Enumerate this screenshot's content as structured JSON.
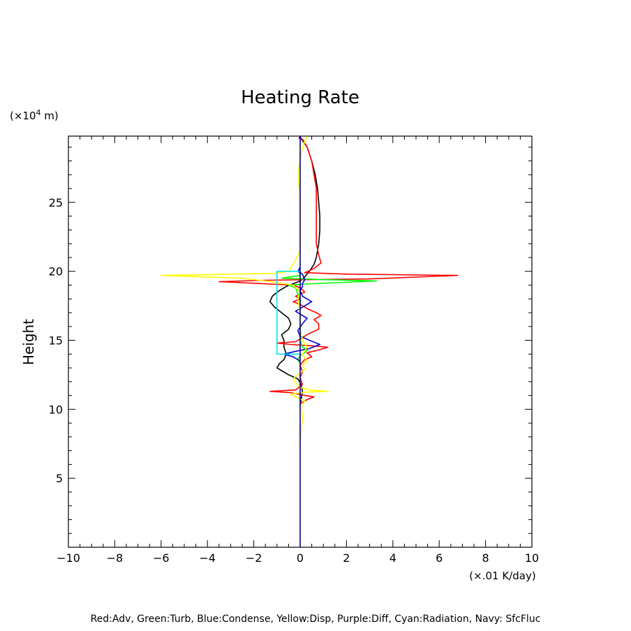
{
  "chart_data": {
    "type": "line",
    "title": "Heating Rate",
    "ylabel": "Height",
    "yunit_prefix": "(×10",
    "yunit_exp": "4",
    "yunit_suffix": " m)",
    "xunit": "(×.01 K/day)",
    "caption": "Red:Adv, Green:Turb, Blue:Condense, Yellow:Disp, Purple:Diff, Cyan:Radiation, Navy: SfcFluc",
    "xlim": [
      -10,
      10
    ],
    "ylim": [
      0,
      29.8
    ],
    "xticks": [
      -10,
      -8,
      -6,
      -4,
      -2,
      0,
      2,
      4,
      6,
      8,
      10
    ],
    "xtick_labels": [
      "−10",
      "−8",
      "−6",
      "−4",
      "−2",
      "0",
      "2",
      "4",
      "6",
      "8",
      "10"
    ],
    "yticks": [
      5,
      10,
      15,
      20,
      25
    ],
    "ytick_labels": [
      "5",
      "10",
      "15",
      "20",
      "25"
    ],
    "grid": false,
    "series": [
      {
        "color": "#000000",
        "points": [
          [
            0.0,
            10.3
          ],
          [
            0.05,
            10.8
          ],
          [
            0.1,
            11.3
          ],
          [
            0.05,
            11.8
          ],
          [
            -0.1,
            12.2
          ],
          [
            -0.5,
            12.5
          ],
          [
            -0.8,
            12.8
          ],
          [
            -1.0,
            13.0
          ],
          [
            -0.9,
            13.3
          ],
          [
            -0.7,
            13.6
          ],
          [
            -0.6,
            14.0
          ],
          [
            -0.7,
            14.5
          ],
          [
            -0.7,
            15.0
          ],
          [
            -0.8,
            15.4
          ],
          [
            -0.5,
            15.8
          ],
          [
            -0.4,
            16.2
          ],
          [
            -0.5,
            16.6
          ],
          [
            -0.8,
            17.0
          ],
          [
            -1.1,
            17.4
          ],
          [
            -1.3,
            17.8
          ],
          [
            -1.2,
            18.2
          ],
          [
            -0.9,
            18.6
          ],
          [
            -0.6,
            18.9
          ],
          [
            -0.3,
            19.1
          ],
          [
            0.0,
            19.3
          ],
          [
            0.2,
            19.6
          ],
          [
            0.4,
            20.0
          ],
          [
            0.6,
            20.5
          ],
          [
            0.7,
            21.0
          ],
          [
            0.8,
            22.0
          ],
          [
            0.85,
            23.0
          ],
          [
            0.85,
            24.0
          ],
          [
            0.8,
            25.0
          ],
          [
            0.75,
            26.0
          ],
          [
            0.65,
            27.0
          ],
          [
            0.5,
            28.0
          ],
          [
            0.3,
            29.0
          ],
          [
            0.1,
            29.5
          ],
          [
            0.0,
            29.7
          ]
        ]
      },
      {
        "color": "#ff0000",
        "points": [
          [
            0.0,
            10.4
          ],
          [
            0.3,
            10.7
          ],
          [
            0.6,
            10.9
          ],
          [
            0.2,
            11.0
          ],
          [
            -0.4,
            11.2
          ],
          [
            -1.3,
            11.3
          ],
          [
            -0.2,
            11.4
          ],
          [
            0.1,
            11.8
          ],
          [
            0.0,
            12.3
          ],
          [
            0.1,
            12.7
          ],
          [
            0.0,
            13.2
          ],
          [
            0.2,
            13.6
          ],
          [
            0.5,
            13.8
          ],
          [
            0.3,
            14.1
          ],
          [
            0.8,
            14.3
          ],
          [
            1.2,
            14.5
          ],
          [
            0.5,
            14.6
          ],
          [
            -0.4,
            14.7
          ],
          [
            -1.0,
            14.8
          ],
          [
            -0.2,
            14.9
          ],
          [
            0.1,
            15.2
          ],
          [
            0.4,
            15.5
          ],
          [
            0.8,
            15.8
          ],
          [
            0.8,
            16.2
          ],
          [
            0.6,
            16.5
          ],
          [
            0.9,
            16.8
          ],
          [
            0.7,
            17.0
          ],
          [
            0.3,
            17.3
          ],
          [
            0.0,
            17.6
          ],
          [
            -0.3,
            17.8
          ],
          [
            0.0,
            18.0
          ],
          [
            -0.2,
            18.2
          ],
          [
            0.2,
            18.5
          ],
          [
            0.0,
            18.8
          ],
          [
            -0.3,
            19.0
          ],
          [
            -3.5,
            19.25
          ],
          [
            -1.5,
            19.35
          ],
          [
            0.5,
            19.4
          ],
          [
            3.0,
            19.45
          ],
          [
            6.8,
            19.7
          ],
          [
            2.0,
            19.8
          ],
          [
            0.2,
            19.9
          ],
          [
            0.6,
            20.2
          ],
          [
            0.9,
            20.6
          ],
          [
            0.8,
            21.2
          ],
          [
            0.7,
            22.0
          ],
          [
            0.7,
            23.0
          ],
          [
            0.7,
            24.0
          ],
          [
            0.7,
            25.0
          ],
          [
            0.7,
            26.0
          ],
          [
            0.6,
            27.0
          ],
          [
            0.5,
            28.0
          ],
          [
            0.3,
            29.0
          ],
          [
            0.1,
            29.6
          ]
        ]
      },
      {
        "color": "#00ff00",
        "points": [
          [
            0.0,
            13.3
          ],
          [
            -0.1,
            13.6
          ],
          [
            0.0,
            13.9
          ],
          [
            0.2,
            14.1
          ],
          [
            0.3,
            14.3
          ],
          [
            0.1,
            14.5
          ],
          [
            0.0,
            15.0
          ],
          [
            0.0,
            16.0
          ],
          [
            0.0,
            17.0
          ],
          [
            0.0,
            18.0
          ],
          [
            -0.2,
            18.8
          ],
          [
            -0.5,
            19.0
          ],
          [
            0.5,
            19.1
          ],
          [
            3.3,
            19.3
          ],
          [
            1.0,
            19.4
          ],
          [
            -0.8,
            19.5
          ],
          [
            0.0,
            19.7
          ],
          [
            0.0,
            20.0
          ]
        ]
      },
      {
        "color": "#0000cc",
        "points": [
          [
            0.0,
            13.5
          ],
          [
            -0.3,
            13.8
          ],
          [
            -0.7,
            14.0
          ],
          [
            -0.2,
            14.2
          ],
          [
            0.4,
            14.4
          ],
          [
            0.85,
            14.7
          ],
          [
            0.4,
            15.0
          ],
          [
            0.0,
            15.3
          ],
          [
            -0.1,
            15.7
          ],
          [
            0.1,
            16.2
          ],
          [
            0.3,
            16.6
          ],
          [
            0.0,
            16.9
          ],
          [
            -0.2,
            17.1
          ],
          [
            0.1,
            17.4
          ],
          [
            0.5,
            17.8
          ],
          [
            0.1,
            18.2
          ],
          [
            0.0,
            18.6
          ],
          [
            0.1,
            18.9
          ],
          [
            0.1,
            19.1
          ],
          [
            0.2,
            19.4
          ],
          [
            0.1,
            19.8
          ],
          [
            -0.1,
            20.0
          ],
          [
            0.0,
            20.3
          ]
        ]
      },
      {
        "color": "#ffff00",
        "points": [
          [
            0.0,
            7.6
          ],
          [
            0.05,
            8.5
          ],
          [
            0.1,
            9.5
          ],
          [
            0.05,
            10.2
          ],
          [
            0.2,
            10.6
          ],
          [
            -0.2,
            10.9
          ],
          [
            -0.4,
            11.1
          ],
          [
            0.3,
            11.25
          ],
          [
            1.2,
            11.3
          ],
          [
            0.4,
            11.4
          ],
          [
            0.0,
            11.6
          ],
          [
            -0.2,
            11.9
          ],
          [
            -0.3,
            12.2
          ],
          [
            -0.1,
            12.5
          ],
          [
            0.2,
            12.9
          ],
          [
            0.1,
            13.2
          ],
          [
            0.3,
            13.5
          ],
          [
            0.1,
            14.0
          ],
          [
            0.3,
            14.5
          ],
          [
            0.1,
            15.0
          ],
          [
            0.0,
            16.0
          ],
          [
            0.0,
            17.0
          ],
          [
            -0.1,
            18.0
          ],
          [
            0.0,
            18.5
          ],
          [
            -0.3,
            19.0
          ],
          [
            -1.5,
            19.3
          ],
          [
            -2.5,
            19.5
          ],
          [
            -6.0,
            19.7
          ],
          [
            -1.0,
            19.85
          ],
          [
            -0.5,
            20.0
          ],
          [
            -0.3,
            20.5
          ],
          [
            0.0,
            21.5
          ],
          [
            0.0,
            22.5
          ],
          [
            0.0,
            24.0
          ],
          [
            0.0,
            25.5
          ],
          [
            -0.1,
            27.0
          ],
          [
            0.0,
            28.0
          ],
          [
            0.1,
            29.0
          ],
          [
            0.3,
            29.8
          ]
        ]
      },
      {
        "color": "#800080",
        "points": [
          [
            -0.05,
            29.6
          ],
          [
            0.0,
            29.8
          ],
          [
            0.05,
            29.6
          ]
        ]
      },
      {
        "color": "#00e5ee",
        "points": [
          [
            0.0,
            14.0
          ],
          [
            -1.0,
            14.0
          ],
          [
            -1.0,
            20.0
          ],
          [
            0.0,
            20.0
          ]
        ]
      },
      {
        "color": "#000080",
        "points": [
          [
            0.0,
            0.0
          ],
          [
            0.0,
            29.8
          ]
        ]
      }
    ]
  }
}
